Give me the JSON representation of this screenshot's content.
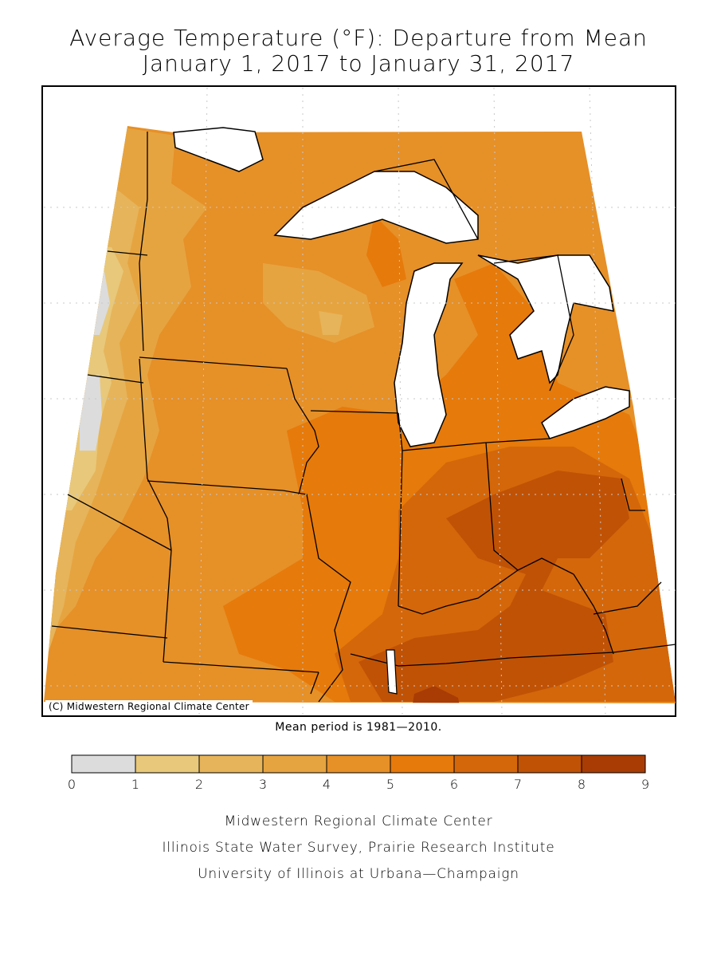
{
  "title_line1": "Average Temperature (°F): Departure from Mean",
  "title_line2": "January 1, 2017 to January 31, 2017",
  "copyright": "(C) Midwestern Regional Climate Center",
  "mean_period": "Mean period is 1981—2010.",
  "legend": {
    "ticks": [
      "0",
      "1",
      "2",
      "3",
      "4",
      "5",
      "6",
      "7",
      "8",
      "9"
    ],
    "bins": [
      {
        "from": 0,
        "to": 1,
        "color": "#dcdcdc"
      },
      {
        "from": 1,
        "to": 2,
        "color": "#e8c87a"
      },
      {
        "from": 2,
        "to": 3,
        "color": "#e6b45a"
      },
      {
        "from": 3,
        "to": 4,
        "color": "#e6a440"
      },
      {
        "from": 4,
        "to": 5,
        "color": "#e69028"
      },
      {
        "from": 5,
        "to": 6,
        "color": "#e67a0a"
      },
      {
        "from": 6,
        "to": 7,
        "color": "#d4670a"
      },
      {
        "from": 7,
        "to": 8,
        "color": "#c05206"
      },
      {
        "from": 8,
        "to": 9,
        "color": "#a83c04"
      }
    ]
  },
  "footer": {
    "line1": "Midwestern Regional Climate Center",
    "line2": "Illinois State Water Survey, Prairie Research Institute",
    "line3": "University of Illinois at Urbana—Champaign"
  },
  "colors": {
    "lake": "#ffffff",
    "border": "#000000",
    "grid": "#c8c8c8"
  }
}
